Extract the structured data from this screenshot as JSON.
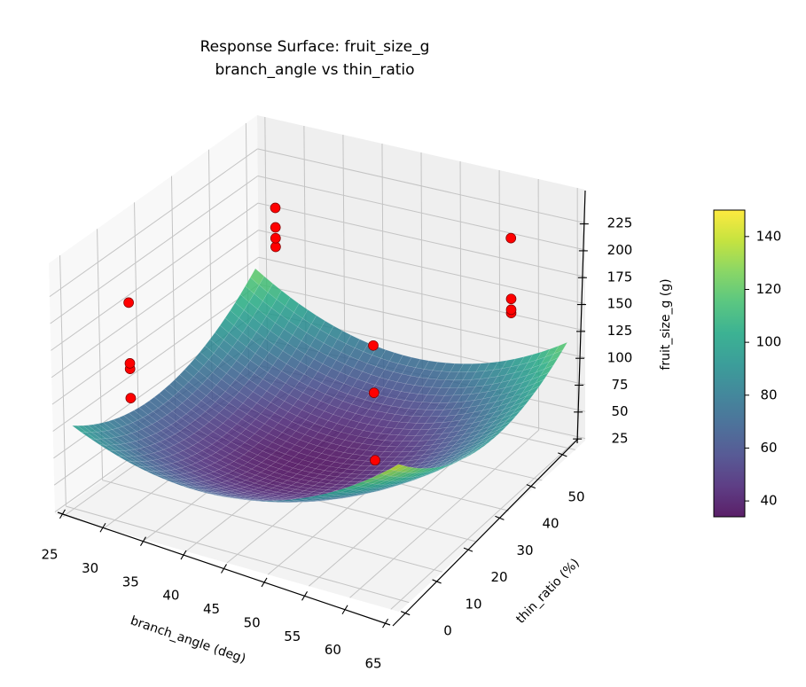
{
  "chart_data": {
    "type": "surface",
    "title": [
      "Response Surface: fruit_size_g",
      "branch_angle vs thin_ratio"
    ],
    "xlabel": "branch_angle (deg)",
    "ylabel": "thin_ratio (%)",
    "zlabel": "fruit_size_g (g)",
    "xlim": [
      24,
      66
    ],
    "ylim": [
      -3,
      53
    ],
    "zlim": [
      23,
      256
    ],
    "xticks": [
      25,
      30,
      35,
      40,
      45,
      50,
      55,
      60,
      65
    ],
    "yticks": [
      0,
      10,
      20,
      30,
      40,
      50
    ],
    "zticks": [
      25,
      50,
      75,
      100,
      125,
      150,
      175,
      200,
      225
    ],
    "grid": true,
    "view": {
      "elev": 30,
      "azim": -60
    },
    "surface": {
      "colormap": "viridis",
      "x_range": [
        25,
        65
      ],
      "y_range": [
        0,
        50
      ],
      "model": "z = c0 + a*(x-45)^2 + b*(y-25)^2 + c*(x-45)*(y-25) + d*(x-45) + e*(y-25)",
      "coefficients": {
        "c0": 35,
        "a": 0.12,
        "b": 0.062,
        "c": -0.0226,
        "d": 0.5,
        "e": 0.018
      },
      "alpha": 0.85
    },
    "scatter": {
      "color": "#ff0000",
      "points": [
        {
          "x": 30,
          "y": 5,
          "z": 211
        },
        {
          "x": 30,
          "y": 5,
          "z": 155
        },
        {
          "x": 30,
          "y": 5,
          "z": 150
        },
        {
          "x": 30,
          "y": 5,
          "z": 123
        },
        {
          "x": 30,
          "y": 45,
          "z": 200
        },
        {
          "x": 30,
          "y": 45,
          "z": 182
        },
        {
          "x": 30,
          "y": 45,
          "z": 172
        },
        {
          "x": 30,
          "y": 45,
          "z": 164
        },
        {
          "x": 60,
          "y": 45,
          "z": 222
        },
        {
          "x": 60,
          "y": 45,
          "z": 166
        },
        {
          "x": 60,
          "y": 45,
          "z": 156
        },
        {
          "x": 60,
          "y": 45,
          "z": 153
        },
        {
          "x": 60,
          "y": 5,
          "z": 226
        },
        {
          "x": 60,
          "y": 5,
          "z": 184
        },
        {
          "x": 60,
          "y": 5,
          "z": 124
        }
      ]
    },
    "colorbar": {
      "range": [
        34,
        150
      ],
      "ticks": [
        40,
        60,
        80,
        100,
        120,
        140
      ]
    }
  }
}
